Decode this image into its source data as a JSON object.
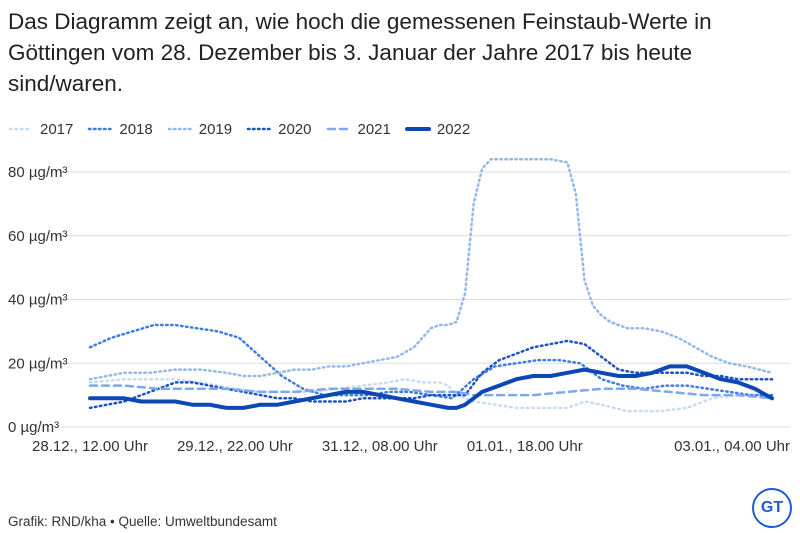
{
  "header": {
    "title": "Das Diagramm zeigt an, wie hoch die gemessenen Feinstaub-Werte in Göttingen vom 28. Dezember bis 3. Januar der Jahre 2017 bis heute sind/waren."
  },
  "footer": {
    "credit": "Grafik: RND/kha • Quelle: Umweltbundesamt"
  },
  "logo": {
    "text": "GT"
  },
  "colors": {
    "s2017": "#c9dbf2",
    "s2018": "#3f7ee0",
    "s2019": "#91b9ea",
    "s2020": "#1c52c2",
    "s2021": "#7ea7ee",
    "s2022": "#0c47b4",
    "grid": "#dddddd",
    "logo": "#1d5bd6"
  },
  "chart_data": {
    "type": "line",
    "xlabel": "",
    "ylabel": "",
    "ylim": [
      0,
      85
    ],
    "yticks": [
      0,
      20,
      40,
      60,
      80
    ],
    "yticklabels": [
      "0 µg/m³",
      "20 µg/m³",
      "40 µg/m³",
      "60 µg/m³",
      "80 µg/m³"
    ],
    "x_hour_range": [
      0,
      160
    ],
    "xticks": [
      0,
      34,
      68,
      102,
      136
    ],
    "xticklabels": [
      "28.12., 12.00 Uhr",
      "29.12., 22.00 Uhr",
      "31.12., 08.00 Uhr",
      "01.01., 18.00 Uhr",
      "03.01., 04.00 Uhr"
    ],
    "grid": true,
    "legend_position": "top-left",
    "series": [
      {
        "name": "2017",
        "style": "dotted-light",
        "width": 2.5,
        "x": [
          0,
          8,
          14,
          20,
          26,
          30,
          34,
          40,
          46,
          52,
          58,
          64,
          70,
          74,
          78,
          82,
          84,
          86,
          90,
          95,
          100,
          104,
          108,
          112,
          116,
          120,
          126,
          134,
          140,
          146,
          152,
          156,
          160
        ],
        "y": [
          14,
          15,
          15,
          15,
          14,
          13,
          12,
          11,
          11,
          11,
          12,
          13,
          14,
          15,
          14,
          14,
          13,
          10,
          8,
          7,
          6,
          6,
          6,
          6,
          8,
          7,
          5,
          5,
          6,
          9,
          10,
          10,
          10
        ]
      },
      {
        "name": "2018",
        "style": "dotted",
        "width": 2.5,
        "x": [
          0,
          5,
          10,
          15,
          20,
          25,
          30,
          35,
          40,
          45,
          50,
          55,
          60,
          65,
          70,
          75,
          80,
          85,
          90,
          95,
          100,
          105,
          110,
          115,
          120,
          125,
          130,
          135,
          140,
          145,
          150,
          155,
          160
        ],
        "y": [
          25,
          28,
          30,
          32,
          32,
          31,
          30,
          28,
          22,
          16,
          12,
          10,
          10,
          10,
          11,
          11,
          10,
          9,
          15,
          19,
          20,
          21,
          21,
          20,
          15,
          13,
          12,
          13,
          13,
          12,
          11,
          10,
          10
        ]
      },
      {
        "name": "2019",
        "style": "dotted-medium",
        "width": 2.5,
        "x": [
          0,
          4,
          8,
          14,
          20,
          26,
          32,
          36,
          40,
          44,
          48,
          52,
          56,
          60,
          64,
          68,
          72,
          76,
          80,
          82,
          84,
          86,
          88,
          90,
          92,
          94,
          96,
          100,
          104,
          108,
          112,
          114,
          116,
          118,
          120,
          122,
          124,
          126,
          130,
          134,
          138,
          142,
          146,
          150,
          154,
          160
        ],
        "y": [
          15,
          16,
          17,
          17,
          18,
          18,
          17,
          16,
          16,
          17,
          18,
          18,
          19,
          19,
          20,
          21,
          22,
          25,
          31,
          32,
          32,
          33,
          42,
          70,
          81,
          84,
          84,
          84,
          84,
          84,
          83,
          73,
          46,
          38,
          35,
          33,
          32,
          31,
          31,
          30,
          28,
          25,
          22,
          20,
          19,
          17
        ]
      },
      {
        "name": "2020",
        "style": "dotted-dark",
        "width": 2.5,
        "x": [
          0,
          4,
          8,
          12,
          16,
          20,
          24,
          28,
          32,
          36,
          40,
          44,
          48,
          52,
          56,
          60,
          64,
          68,
          72,
          76,
          80,
          84,
          88,
          92,
          96,
          100,
          104,
          108,
          112,
          116,
          120,
          124,
          128,
          132,
          136,
          140,
          144,
          148,
          152,
          156,
          160
        ],
        "y": [
          6,
          7,
          8,
          10,
          12,
          14,
          14,
          13,
          12,
          11,
          10,
          9,
          9,
          8,
          8,
          8,
          9,
          9,
          9,
          9,
          10,
          10,
          10,
          17,
          21,
          23,
          25,
          26,
          27,
          26,
          22,
          18,
          17,
          17,
          17,
          17,
          16,
          16,
          15,
          15,
          15
        ]
      },
      {
        "name": "2021",
        "style": "dashed",
        "width": 2.5,
        "x": [
          0,
          8,
          16,
          24,
          32,
          40,
          48,
          56,
          64,
          72,
          80,
          86,
          90,
          96,
          104,
          112,
          120,
          128,
          136,
          144,
          152,
          160
        ],
        "y": [
          13,
          13,
          12,
          12,
          12,
          11,
          11,
          12,
          12,
          12,
          11,
          11,
          10,
          10,
          10,
          11,
          12,
          12,
          11,
          10,
          10,
          9
        ]
      },
      {
        "name": "2022",
        "style": "solid",
        "width": 4,
        "x": [
          0,
          4,
          8,
          12,
          16,
          20,
          24,
          28,
          32,
          36,
          40,
          44,
          48,
          52,
          56,
          60,
          64,
          68,
          72,
          76,
          80,
          84,
          86,
          88,
          90,
          92,
          96,
          100,
          104,
          108,
          112,
          116,
          120,
          124,
          128,
          132,
          136,
          140,
          144,
          148,
          152,
          156,
          160
        ],
        "y": [
          9,
          9,
          9,
          8,
          8,
          8,
          7,
          7,
          6,
          6,
          7,
          7,
          8,
          9,
          10,
          11,
          11,
          10,
          9,
          8,
          7,
          6,
          6,
          7,
          9,
          11,
          13,
          15,
          16,
          16,
          17,
          18,
          17,
          16,
          16,
          17,
          19,
          19,
          17,
          15,
          14,
          12,
          9
        ]
      }
    ]
  }
}
